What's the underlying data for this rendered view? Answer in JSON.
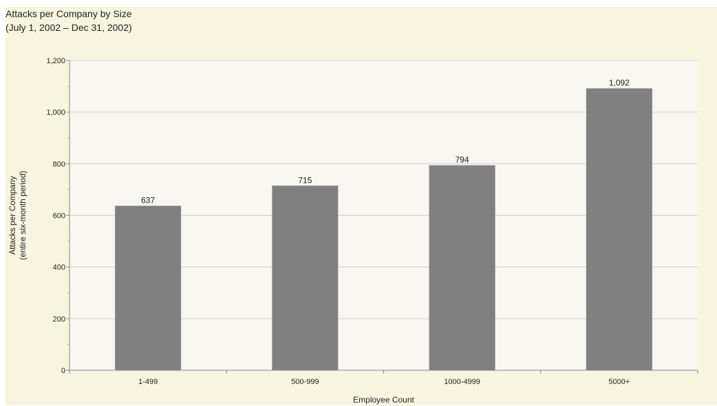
{
  "chart_data": {
    "type": "bar",
    "title": "Attacks per Company by Size",
    "subtitle": "(July 1, 2002 – Dec 31, 2002)",
    "xlabel": "Employee Count",
    "ylabel": "Attacks per Company",
    "ylabel2": "(entire six-month period)",
    "categories": [
      "1-499",
      "500-999",
      "1000-4999",
      "5000+"
    ],
    "values": [
      637,
      715,
      794,
      1092
    ],
    "value_labels": [
      "637",
      "715",
      "794",
      "1,092"
    ],
    "ylim": [
      0,
      1200
    ],
    "yticks": [
      0,
      200,
      400,
      600,
      800,
      1000,
      1200
    ],
    "ytick_labels": [
      "0",
      "200",
      "400",
      "600",
      "800",
      "1,000",
      "1,200"
    ],
    "grid": true,
    "colors": {
      "bar": "#808080",
      "plot_bg": "#f7f6f0",
      "frame_bg": "#f7f5df",
      "grid": "#cfcfcf"
    }
  }
}
